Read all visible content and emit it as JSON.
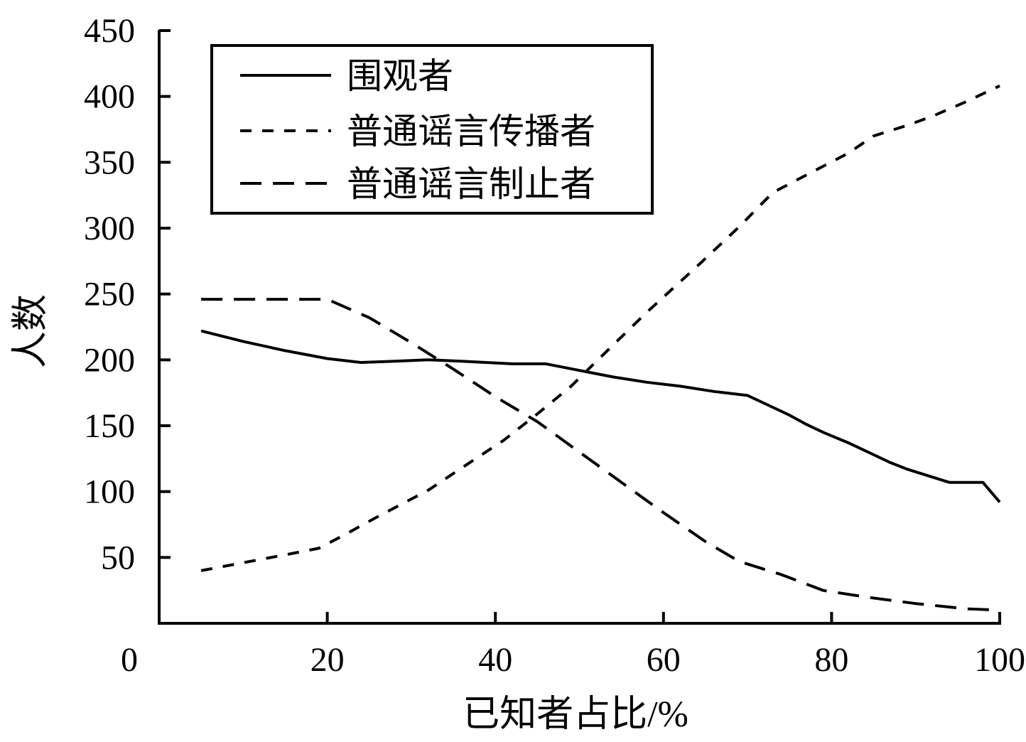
{
  "chart_data": {
    "type": "line",
    "title": "",
    "xlabel": "已知者占比/%",
    "ylabel": "人数",
    "xlim": [
      0,
      100
    ],
    "ylim": [
      0,
      450
    ],
    "x_ticks": [
      "0",
      "20",
      "40",
      "60",
      "80",
      "100"
    ],
    "y_ticks": [
      "50",
      "100",
      "150",
      "200",
      "250",
      "300",
      "350",
      "400",
      "450"
    ],
    "grid": false,
    "legend_position": "top-left",
    "series": [
      {
        "name": "围观者",
        "style": "solid",
        "points": [
          [
            5,
            222
          ],
          [
            10,
            214
          ],
          [
            15,
            207
          ],
          [
            20,
            201
          ],
          [
            24,
            198
          ],
          [
            28,
            199
          ],
          [
            32,
            200
          ],
          [
            36,
            199
          ],
          [
            42,
            197
          ],
          [
            46,
            197
          ],
          [
            50,
            192
          ],
          [
            54,
            187
          ],
          [
            58,
            183
          ],
          [
            62,
            180
          ],
          [
            66,
            176
          ],
          [
            70,
            173
          ],
          [
            72,
            167
          ],
          [
            75,
            158
          ],
          [
            77,
            151
          ],
          [
            79,
            145
          ],
          [
            82,
            137
          ],
          [
            84,
            131
          ],
          [
            87,
            122
          ],
          [
            89,
            117
          ],
          [
            92,
            111
          ],
          [
            94,
            107
          ],
          [
            98,
            107
          ],
          [
            100,
            92
          ]
        ]
      },
      {
        "name": "普通谣言传播者",
        "style": "short-dash",
        "points": [
          [
            5,
            40
          ],
          [
            10,
            46
          ],
          [
            15,
            52
          ],
          [
            19,
            57
          ],
          [
            22,
            67
          ],
          [
            26,
            81
          ],
          [
            32,
            101
          ],
          [
            36,
            118
          ],
          [
            41,
            139
          ],
          [
            45,
            159
          ],
          [
            49,
            180
          ],
          [
            53,
            205
          ],
          [
            58,
            236
          ],
          [
            64,
            271
          ],
          [
            69,
            301
          ],
          [
            73,
            327
          ],
          [
            76,
            337
          ],
          [
            79,
            347
          ],
          [
            82,
            357
          ],
          [
            85,
            370
          ],
          [
            89,
            378
          ],
          [
            92,
            385
          ],
          [
            96,
            396
          ],
          [
            100,
            408
          ]
        ]
      },
      {
        "name": "普通谣言制止者",
        "style": "long-dash",
        "points": [
          [
            5,
            246
          ],
          [
            20,
            246
          ],
          [
            25,
            232
          ],
          [
            30,
            213
          ],
          [
            35,
            193
          ],
          [
            40,
            172
          ],
          [
            45,
            153
          ],
          [
            50,
            130
          ],
          [
            55,
            107
          ],
          [
            60,
            84
          ],
          [
            65,
            62
          ],
          [
            69,
            47
          ],
          [
            74,
            37
          ],
          [
            79,
            25
          ],
          [
            84,
            20
          ],
          [
            90,
            15
          ],
          [
            96,
            11
          ],
          [
            100,
            10
          ]
        ]
      }
    ]
  },
  "colors": {
    "line": "#000000",
    "background": "#ffffff"
  }
}
